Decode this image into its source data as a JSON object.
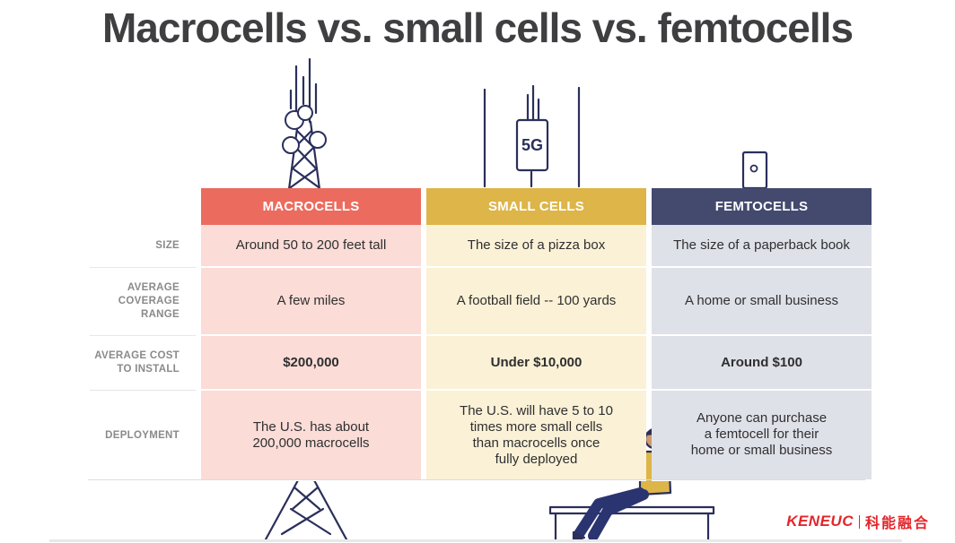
{
  "title": "Macrocells vs. small cells vs. femtocells",
  "columns": [
    "MACROCELLS",
    "SMALL CELLS",
    "FEMTOCELLS"
  ],
  "rows": [
    {
      "label": [
        "SIZE"
      ],
      "values": [
        "Around 50 to 200 feet tall",
        "The size of a pizza box",
        "The size of a paperback book"
      ]
    },
    {
      "label": [
        "AVERAGE",
        "COVERAGE",
        "RANGE"
      ],
      "values": [
        "A few miles",
        "A football field -- 100 yards",
        "A home or small business"
      ]
    },
    {
      "label": [
        "AVERAGE COST",
        "TO INSTALL"
      ],
      "values": [
        "$200,000",
        "Under $10,000",
        "Around $100"
      ]
    },
    {
      "label": [
        "DEPLOYMENT"
      ],
      "values": [
        [
          "The U.S. has about",
          "200,000 macrocells"
        ],
        [
          "The U.S. will have 5 to 10",
          "times more small cells",
          "than macrocells once",
          "fully deployed"
        ],
        [
          "Anyone can purchase",
          "a femtocell for their",
          "home or small business"
        ]
      ]
    }
  ],
  "badge_5g": "5G",
  "brand": {
    "en": "KENEUC",
    "cn": "科能融合"
  },
  "colors": {
    "macro": "#ec6b5f",
    "small": "#ddb548",
    "femto": "#434a6e"
  },
  "icons": [
    "macrocell-tower-icon",
    "small-cell-5g-icon",
    "femtocell-device-icon",
    "person-with-phone-illustration"
  ]
}
